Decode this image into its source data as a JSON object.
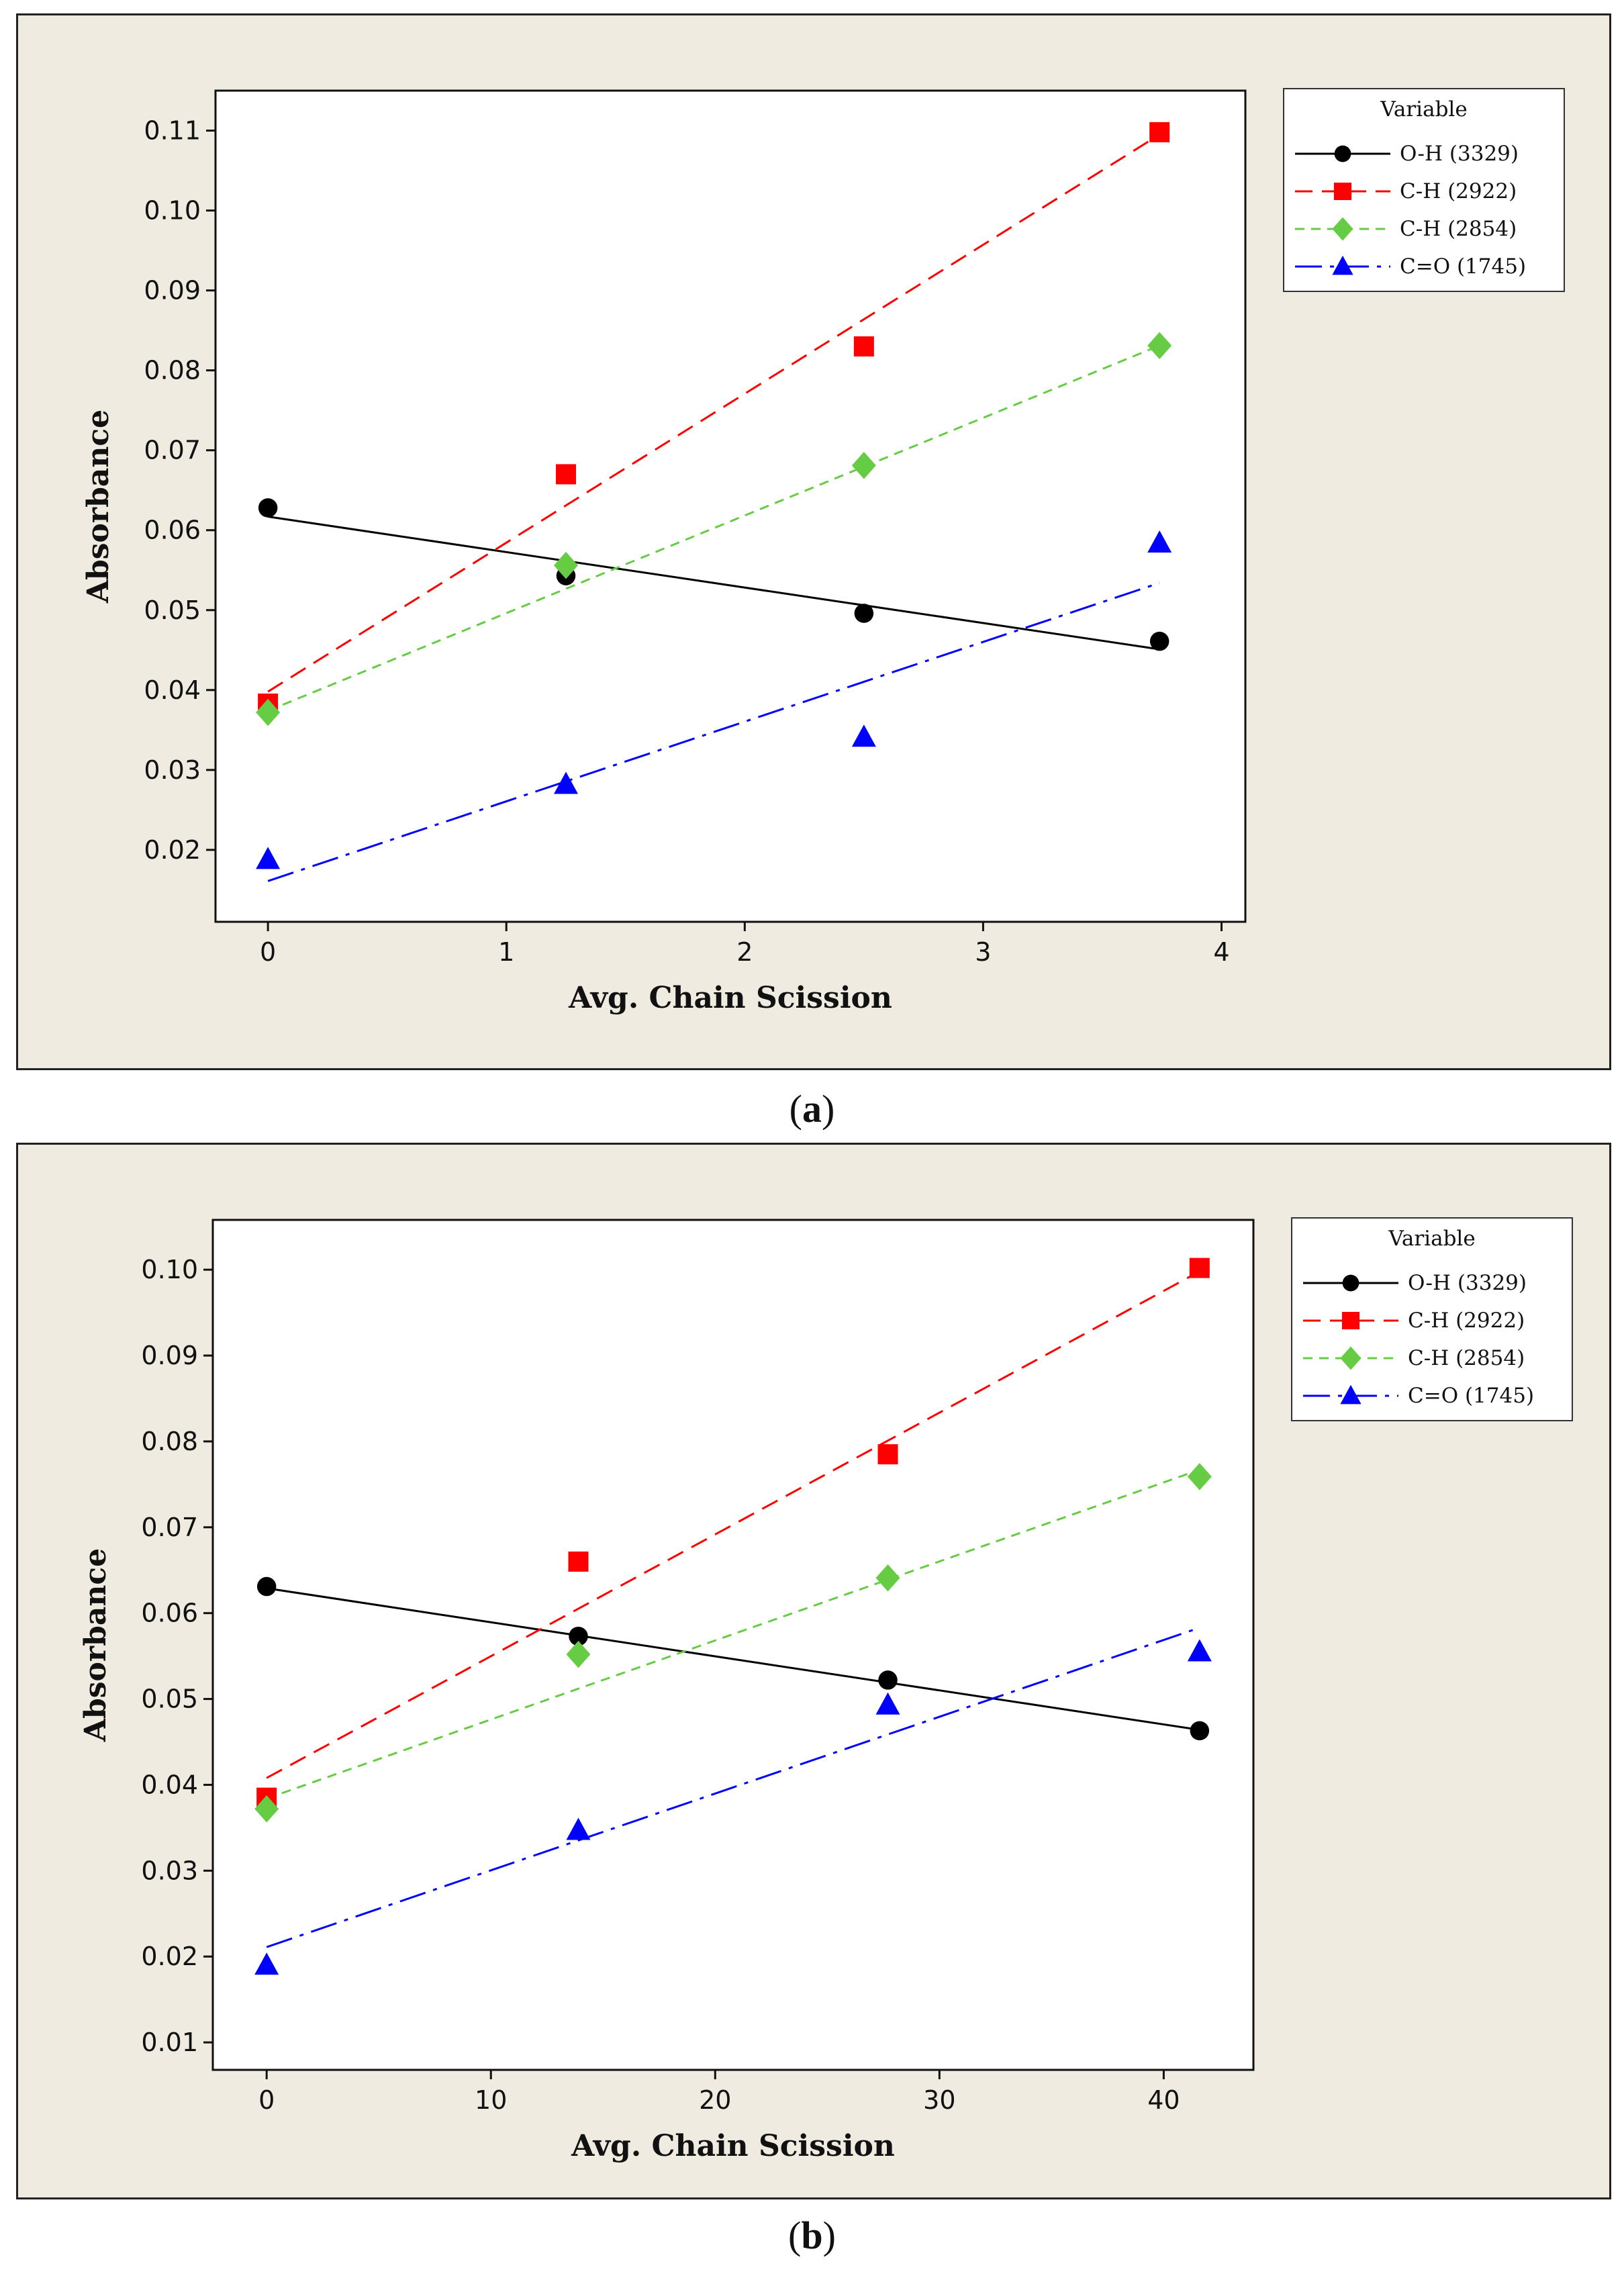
{
  "figure": {
    "caption_a_label": "a",
    "caption_b_label": "b"
  },
  "chart_data": [
    {
      "type": "scatter",
      "panel": "a",
      "xlabel": "Avg. Chain Scission",
      "ylabel": "Absorbance",
      "xlim": [
        -0.22,
        4.1
      ],
      "ylim": [
        0.011,
        0.115
      ],
      "xticks": [
        0,
        1,
        2,
        3,
        4
      ],
      "xtick_labels": [
        "0",
        "1",
        "2",
        "3",
        "4"
      ],
      "yticks": [
        0.02,
        0.03,
        0.04,
        0.05,
        0.06,
        0.07,
        0.08,
        0.09,
        0.1,
        0.11
      ],
      "ytick_labels": [
        "0.02",
        "0.03",
        "0.04",
        "0.05",
        "0.06",
        "0.07",
        "0.08",
        "0.09",
        "0.10",
        "0.11"
      ],
      "legend": {
        "title": "Variable",
        "position": "right"
      },
      "series": [
        {
          "name": "O-H (3329)",
          "color": "#000000",
          "marker": "circle",
          "dash": "",
          "x": [
            0,
            1.25,
            2.5,
            3.74
          ],
          "y": [
            0.0628,
            0.0543,
            0.0496,
            0.0461
          ],
          "fit": [
            0.0617,
            0.0451
          ]
        },
        {
          "name": "C-H (2922)",
          "color": "#ff0000",
          "marker": "square",
          "dash": "26,14",
          "x": [
            0,
            1.25,
            2.5,
            3.74
          ],
          "y": [
            0.0383,
            0.067,
            0.083,
            0.1098
          ],
          "fit": [
            0.0398,
            0.1095
          ]
        },
        {
          "name": "C-H (2854)",
          "color": "#66cc44",
          "marker": "diamond",
          "dash": "14,10",
          "x": [
            0,
            1.25,
            2.5,
            3.74
          ],
          "y": [
            0.0372,
            0.0556,
            0.0681,
            0.0831
          ],
          "fit": [
            0.0374,
            0.0831
          ]
        },
        {
          "name": "C=O (1745)",
          "color": "#0000ff",
          "marker": "triangle",
          "dash": "40,12,6,12",
          "x": [
            0,
            1.25,
            2.5,
            3.74
          ],
          "y": [
            0.0188,
            0.0282,
            0.0341,
            0.0584
          ],
          "fit": [
            0.0161,
            0.0534
          ]
        }
      ]
    },
    {
      "type": "scatter",
      "panel": "b",
      "xlabel": "Avg. Chain Scission",
      "ylabel": "Absorbance",
      "xlim": [
        -2.4,
        44.0
      ],
      "ylim": [
        0.0068,
        0.1058
      ],
      "xticks": [
        0,
        10,
        20,
        30,
        40
      ],
      "xtick_labels": [
        "0",
        "10",
        "20",
        "30",
        "40"
      ],
      "yticks": [
        0.01,
        0.02,
        0.03,
        0.04,
        0.05,
        0.06,
        0.07,
        0.08,
        0.09,
        0.1
      ],
      "ytick_labels": [
        "0.01",
        "0.02",
        "0.03",
        "0.04",
        "0.05",
        "0.06",
        "0.07",
        "0.08",
        "0.09",
        "0.10"
      ],
      "legend": {
        "title": "Variable",
        "position": "right"
      },
      "series": [
        {
          "name": "O-H (3329)",
          "color": "#000000",
          "marker": "circle",
          "dash": "",
          "x": [
            0,
            13.9,
            27.7,
            41.6
          ],
          "y": [
            0.0631,
            0.0573,
            0.0522,
            0.0463
          ],
          "fit": [
            0.0629,
            0.0464
          ]
        },
        {
          "name": "C-H (2922)",
          "color": "#ff0000",
          "marker": "square",
          "dash": "26,14",
          "x": [
            0,
            13.9,
            27.7,
            41.6
          ],
          "y": [
            0.0385,
            0.066,
            0.0785,
            0.1002
          ],
          "fit": [
            0.0408,
            0.0998
          ]
        },
        {
          "name": "C-H (2854)",
          "color": "#66cc44",
          "marker": "diamond",
          "dash": "14,10",
          "x": [
            0,
            13.9,
            27.7,
            41.6
          ],
          "y": [
            0.0372,
            0.0552,
            0.0641,
            0.0759
          ],
          "fit": [
            0.0384,
            0.0767
          ]
        },
        {
          "name": "C=O (1745)",
          "color": "#0000ff",
          "marker": "triangle",
          "dash": "40,12,6,12",
          "x": [
            0,
            13.9,
            27.7,
            41.6
          ],
          "y": [
            0.019,
            0.0347,
            0.0493,
            0.0555
          ],
          "fit": [
            0.0211,
            0.0583
          ]
        }
      ]
    }
  ]
}
